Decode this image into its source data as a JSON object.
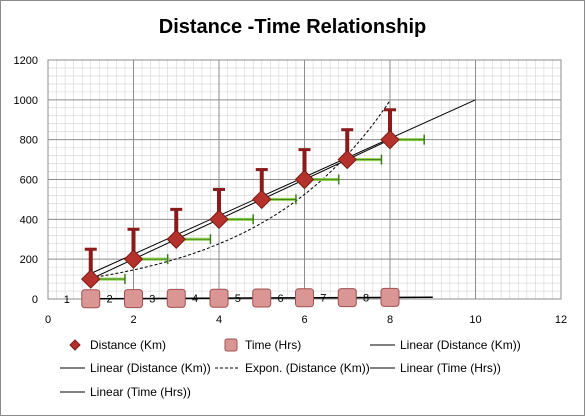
{
  "chart_data": {
    "type": "scatter",
    "title": "Distance -Time Relationship",
    "xlim": [
      0,
      12
    ],
    "ylim": [
      0,
      1200
    ],
    "xticks": [
      0,
      2,
      4,
      6,
      8,
      10,
      12
    ],
    "yticks": [
      0,
      200,
      400,
      600,
      800,
      1000,
      1200
    ],
    "grid": true,
    "legend_position": "bottom",
    "series": [
      {
        "name": "Distance (Km)",
        "marker": "diamond",
        "color": "#b5322c",
        "x": [
          1,
          2,
          3,
          4,
          5,
          6,
          7,
          8
        ],
        "y": [
          100,
          200,
          300,
          400,
          500,
          600,
          700,
          800
        ],
        "y_error_plus": 150,
        "x_error_plus": 0.8
      },
      {
        "name": "Time (Hrs)",
        "marker": "square",
        "color": "#d99694",
        "x": [
          1,
          2,
          3,
          4,
          5,
          6,
          7,
          8
        ],
        "y": [
          1,
          2,
          3,
          4,
          5,
          6,
          7,
          8
        ],
        "point_labels": [
          "1",
          "2",
          "3",
          "4",
          "5",
          "6",
          "7",
          "8"
        ]
      }
    ],
    "trendlines": [
      {
        "name": "Linear (Distance (Km))",
        "type": "linear",
        "x": [
          1,
          10
        ],
        "y": [
          128,
          1000
        ]
      },
      {
        "name": "Linear (Distance (Km))",
        "type": "linear",
        "x": [
          1,
          8
        ],
        "y": [
          100,
          800
        ]
      },
      {
        "name": "Expon. (Distance (Km))",
        "type": "exponential",
        "a": 77,
        "b": 0.32,
        "x_range": [
          1,
          8
        ]
      },
      {
        "name": "Linear (Time (Hrs))",
        "type": "linear",
        "x": [
          1,
          9
        ],
        "y": [
          1,
          9
        ]
      },
      {
        "name": "Linear (Time (Hrs))",
        "type": "linear",
        "x": [
          1,
          9
        ],
        "y": [
          1,
          9
        ]
      }
    ],
    "legend": [
      "Distance (Km)",
      "Time (Hrs)",
      "Linear (Distance (Km))",
      "Linear (Distance (Km))",
      "Expon. (Distance (Km))",
      "Linear (Time (Hrs))",
      "Linear (Time (Hrs))"
    ]
  }
}
